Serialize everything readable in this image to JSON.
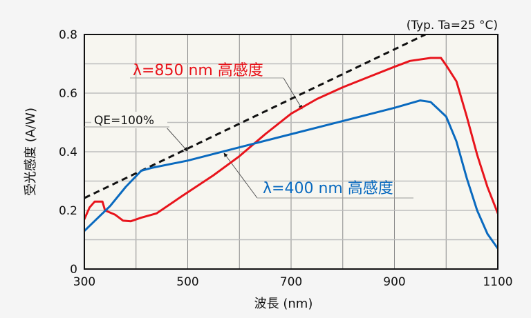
{
  "chart_data": {
    "type": "line",
    "title": "",
    "condition_note": "(Typ. Ta=25 °C)",
    "xlabel": "波長 (nm)",
    "ylabel": "受光感度 (A/W)",
    "xlim": [
      300,
      1100
    ],
    "ylim": [
      0,
      0.8
    ],
    "x_ticks": [
      300,
      500,
      700,
      900,
      1100
    ],
    "x_tick_labels": [
      "300",
      "500",
      "700",
      "900",
      "1100"
    ],
    "y_ticks": [
      0,
      0.2,
      0.4,
      0.6,
      0.8
    ],
    "y_tick_labels": [
      "0",
      "0.2",
      "0.4",
      "0.6",
      "0.8"
    ],
    "grid": {
      "x_step": 100,
      "y_step": 0.1,
      "on": true
    },
    "legend_position": "inline annotations",
    "series": [
      {
        "name": "λ=850 nm 高感度",
        "color": "#e8141c",
        "style": "solid",
        "x": [
          300,
          310,
          320,
          335,
          340,
          360,
          375,
          390,
          410,
          440,
          490,
          550,
          600,
          650,
          700,
          750,
          800,
          850,
          900,
          930,
          970,
          990,
          1000,
          1020,
          1040,
          1060,
          1080,
          1100
        ],
        "values": [
          0.17,
          0.21,
          0.23,
          0.23,
          0.2,
          0.185,
          0.165,
          0.163,
          0.175,
          0.19,
          0.25,
          0.32,
          0.385,
          0.46,
          0.53,
          0.58,
          0.62,
          0.655,
          0.69,
          0.71,
          0.72,
          0.72,
          0.695,
          0.64,
          0.52,
          0.39,
          0.28,
          0.19
        ]
      },
      {
        "name": "λ=400 nm 高感度",
        "color": "#0a6abf",
        "style": "solid",
        "x": [
          300,
          350,
          380,
          410,
          430,
          500,
          600,
          700,
          800,
          900,
          950,
          970,
          1000,
          1020,
          1040,
          1060,
          1080,
          1100
        ],
        "values": [
          0.13,
          0.215,
          0.28,
          0.335,
          0.345,
          0.37,
          0.415,
          0.46,
          0.505,
          0.55,
          0.575,
          0.57,
          0.52,
          0.435,
          0.31,
          0.2,
          0.12,
          0.07
        ]
      },
      {
        "name": "QE=100%",
        "color": "#111111",
        "style": "dashed",
        "x": [
          300,
          960
        ],
        "values": [
          0.242,
          0.8
        ]
      }
    ],
    "annotations": [
      {
        "text": "λ=850 nm 高感度",
        "color": "#e8141c",
        "points_to": [
          745,
          0.58
        ]
      },
      {
        "text": "λ=400 nm 高感度",
        "color": "#0a6abf",
        "points_to": [
          570,
          0.405
        ]
      },
      {
        "text": "QE=100%",
        "color": "#111111",
        "points_to": [
          500,
          0.4
        ]
      }
    ]
  }
}
